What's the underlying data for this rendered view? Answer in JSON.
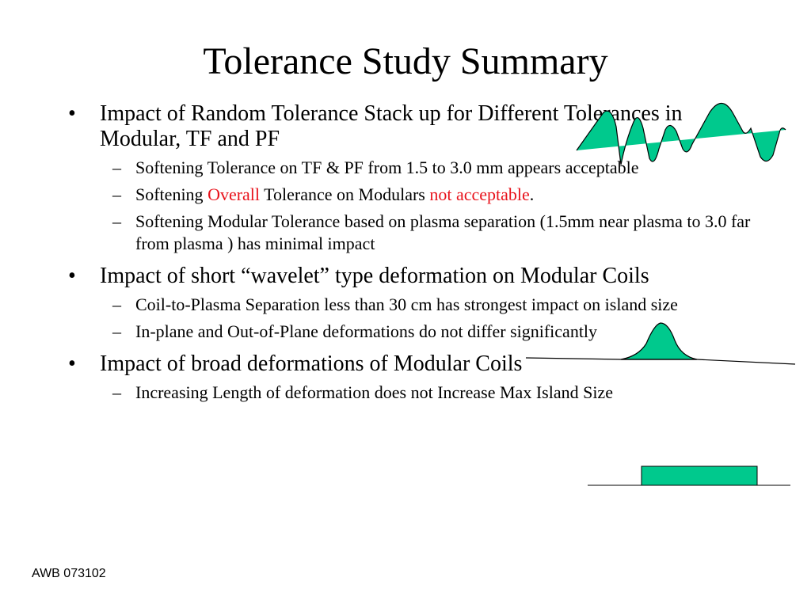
{
  "slide": {
    "title": "Tolerance Study Summary",
    "footer": "AWB 073102",
    "accent_fill": "#00c98d",
    "highlight_color": "#e8121b",
    "bullet_mark": "•",
    "sub_mark": "–",
    "bullets": [
      {
        "text": "Impact of Random Tolerance Stack up for Different Tolerances in Modular, TF and PF",
        "subs": [
          "Softening Tolerance on TF & PF from 1.5 to 3.0 mm appears acceptable",
          {
            "pre": "Softening ",
            "red1": "Overall",
            "mid": " Tolerance on Modulars ",
            "red2": "not acceptable",
            "post": "."
          },
          "Softening Modular Tolerance based on plasma separation  (1.5mm near plasma to 3.0 far from plasma ) has minimal impact"
        ]
      },
      {
        "text": "Impact of short “wavelet” type deformation on Modular Coils",
        "subs": [
          "Coil-to-Plasma Separation less than 30 cm has strongest impact on island size",
          "In-plane and Out-of-Plane deformations do not differ significantly"
        ]
      },
      {
        "text": "Impact of broad deformations of Modular Coils",
        "subs": [
          "Increasing Length of deformation does not Increase Max Island Size"
        ]
      }
    ]
  }
}
